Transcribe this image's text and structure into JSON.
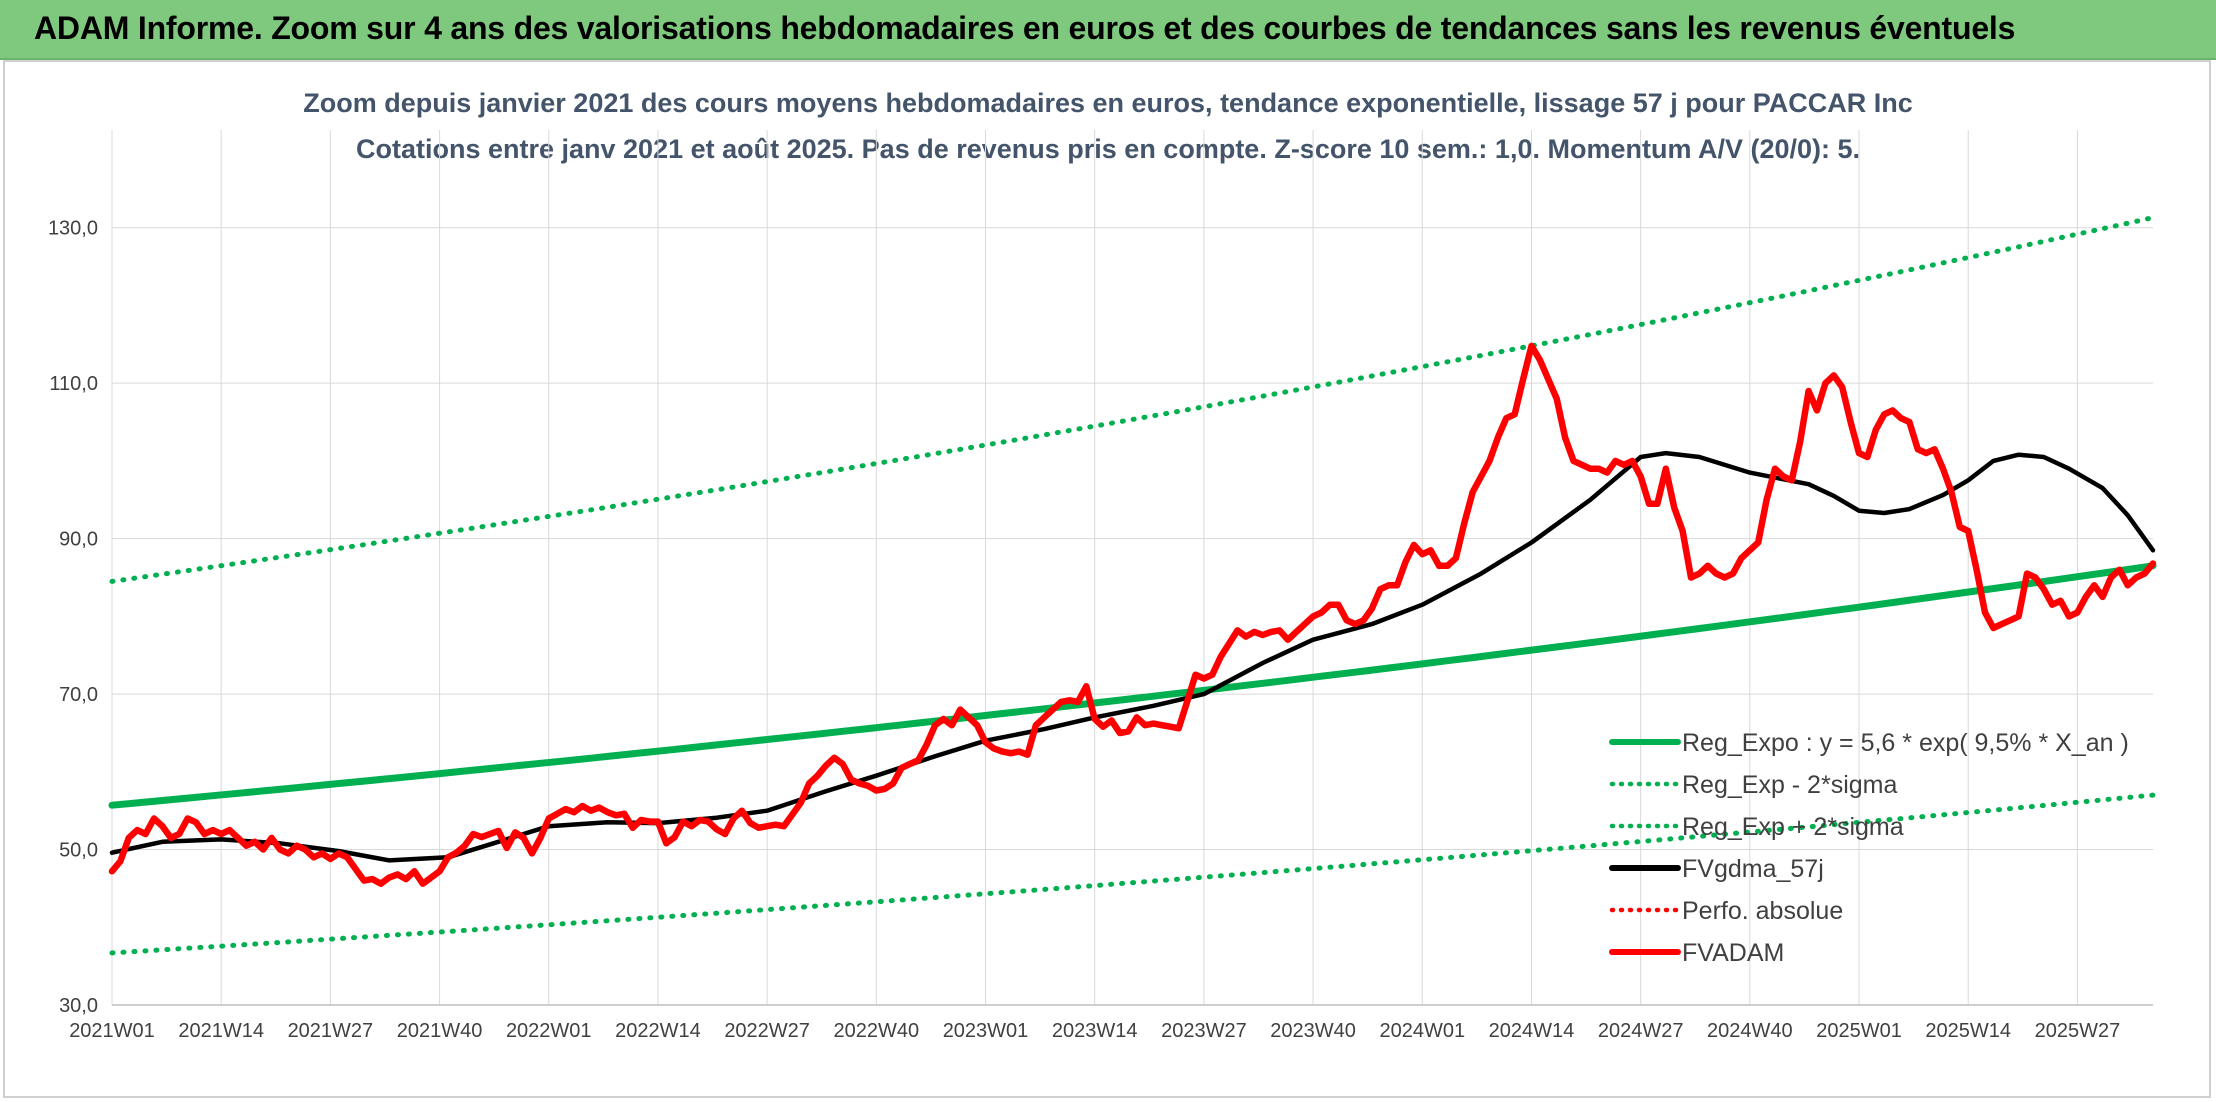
{
  "banner": {
    "title": "ADAM Informe. Zoom sur 4 ans des valorisations hebdomadaires en euros et des courbes de tendances sans les revenus éventuels"
  },
  "colors": {
    "banner_bg": "#7fc97f",
    "trend_green": "#00b050",
    "fvadam_red": "#ff0000",
    "fvgdma_black": "#000000",
    "grid": "#d9d9d9"
  },
  "chart_data": {
    "type": "line",
    "title": "Zoom depuis janvier 2021 des cours moyens hebdomadaires en euros, tendance exponentielle, lissage 57 j pour PACCAR Inc",
    "subtitle": "Cotations entre janv 2021 et août 2025. Pas de revenus pris en compte. Z-score 10 sem.: 1,0. Momentum A/V (20/0): 5.",
    "xlabel": "",
    "ylabel": "",
    "ylim": [
      30,
      140
    ],
    "yticks": [
      "30,0",
      "50,0",
      "70,0",
      "90,0",
      "110,0",
      "130,0"
    ],
    "yticks_values": [
      30,
      50,
      70,
      90,
      110,
      130
    ],
    "xticks": [
      "2021W01",
      "2021W14",
      "2021W27",
      "2021W40",
      "2022W01",
      "2022W14",
      "2022W27",
      "2022W40",
      "2023W01",
      "2023W14",
      "2023W27",
      "2023W40",
      "2024W01",
      "2024W14",
      "2024W27",
      "2024W40",
      "2025W01",
      "2025W14",
      "2025W27"
    ],
    "x_range_weeks": [
      0,
      243
    ],
    "grid": "vertical and horizontal",
    "legend_position": "bottom-right inside plot",
    "series": [
      {
        "name": "Reg_Expo : y = 5,6 * exp( 9,5% *  X_an )",
        "style": "solid",
        "color": "#00b050",
        "x": [
          0,
          243
        ],
        "start_value": 55.7,
        "end_value": 86.5
      },
      {
        "name": "Reg_Exp - 2*sigma",
        "style": "dotted",
        "color": "#00b050",
        "x": [
          0,
          243
        ],
        "start_value": 36.7,
        "end_value": 57.0
      },
      {
        "name": "Reg_Exp + 2*sigma",
        "style": "dotted",
        "color": "#00b050",
        "x": [
          0,
          243
        ],
        "start_value": 84.5,
        "end_value": 131.3
      },
      {
        "name": "FVgdma_57j",
        "style": "solid",
        "color": "#000000",
        "points": [
          [
            0,
            49.6
          ],
          [
            6,
            51.0
          ],
          [
            13,
            51.3
          ],
          [
            20,
            50.8
          ],
          [
            27,
            49.8
          ],
          [
            33,
            48.6
          ],
          [
            40,
            49.0
          ],
          [
            46,
            51.0
          ],
          [
            52,
            53.0
          ],
          [
            59,
            53.5
          ],
          [
            65,
            53.4
          ],
          [
            72,
            54.1
          ],
          [
            78,
            55.0
          ],
          [
            85,
            57.5
          ],
          [
            91,
            59.5
          ],
          [
            98,
            62.0
          ],
          [
            104,
            64.0
          ],
          [
            111,
            65.5
          ],
          [
            117,
            67.0
          ],
          [
            124,
            68.5
          ],
          [
            130,
            70.0
          ],
          [
            137,
            74.0
          ],
          [
            143,
            77.0
          ],
          [
            150,
            79.0
          ],
          [
            156,
            81.5
          ],
          [
            163,
            85.5
          ],
          [
            169,
            89.5
          ],
          [
            176,
            95.0
          ],
          [
            182,
            100.5
          ],
          [
            185,
            101.0
          ],
          [
            189,
            100.5
          ],
          [
            195,
            98.5
          ],
          [
            202,
            97.0
          ],
          [
            205,
            95.5
          ],
          [
            208,
            93.6
          ],
          [
            211,
            93.3
          ],
          [
            214,
            93.8
          ],
          [
            218,
            95.6
          ],
          [
            221,
            97.5
          ],
          [
            224,
            100.0
          ],
          [
            227,
            100.8
          ],
          [
            230,
            100.5
          ],
          [
            233,
            99.0
          ],
          [
            237,
            96.5
          ],
          [
            240,
            93.0
          ],
          [
            243,
            88.5
          ]
        ]
      },
      {
        "name": "Perfo. absolue",
        "style": "dotted",
        "color": "#ff0000",
        "points": []
      },
      {
        "name": "FVADAM",
        "style": "solid",
        "color": "#ff0000",
        "points": [
          [
            0,
            47.2
          ],
          [
            1,
            48.5
          ],
          [
            2,
            51.5
          ],
          [
            3,
            52.5
          ],
          [
            4,
            52.0
          ],
          [
            5,
            54.0
          ],
          [
            6,
            53.0
          ],
          [
            7,
            51.5
          ],
          [
            8,
            52.0
          ],
          [
            9,
            54.0
          ],
          [
            10,
            53.5
          ],
          [
            11,
            52.0
          ],
          [
            12,
            52.5
          ],
          [
            13,
            52.0
          ],
          [
            14,
            52.5
          ],
          [
            15,
            51.5
          ],
          [
            16,
            50.5
          ],
          [
            17,
            51.0
          ],
          [
            18,
            50.0
          ],
          [
            19,
            51.5
          ],
          [
            20,
            50.0
          ],
          [
            21,
            49.5
          ],
          [
            22,
            50.5
          ],
          [
            23,
            50.0
          ],
          [
            24,
            49.0
          ],
          [
            25,
            49.5
          ],
          [
            26,
            48.8
          ],
          [
            27,
            49.5
          ],
          [
            28,
            49.0
          ],
          [
            29,
            47.5
          ],
          [
            30,
            46.0
          ],
          [
            31,
            46.2
          ],
          [
            32,
            45.6
          ],
          [
            33,
            46.4
          ],
          [
            34,
            46.8
          ],
          [
            35,
            46.2
          ],
          [
            36,
            47.2
          ],
          [
            37,
            45.6
          ],
          [
            38,
            46.4
          ],
          [
            39,
            47.2
          ],
          [
            40,
            49.0
          ],
          [
            41,
            49.6
          ],
          [
            42,
            50.5
          ],
          [
            43,
            52.0
          ],
          [
            44,
            51.6
          ],
          [
            45,
            52.0
          ],
          [
            46,
            52.4
          ],
          [
            47,
            50.2
          ],
          [
            48,
            52.2
          ],
          [
            49,
            51.5
          ],
          [
            50,
            49.5
          ],
          [
            51,
            51.5
          ],
          [
            52,
            54.0
          ],
          [
            53,
            54.6
          ],
          [
            54,
            55.2
          ],
          [
            55,
            54.8
          ],
          [
            56,
            55.6
          ],
          [
            57,
            55.0
          ],
          [
            58,
            55.4
          ],
          [
            59,
            54.8
          ],
          [
            60,
            54.4
          ],
          [
            61,
            54.6
          ],
          [
            62,
            52.8
          ],
          [
            63,
            53.8
          ],
          [
            64,
            53.6
          ],
          [
            65,
            53.6
          ],
          [
            66,
            50.8
          ],
          [
            67,
            51.6
          ],
          [
            68,
            53.6
          ],
          [
            69,
            53.0
          ],
          [
            70,
            53.8
          ],
          [
            71,
            53.6
          ],
          [
            72,
            52.6
          ],
          [
            73,
            52.0
          ],
          [
            74,
            54.0
          ],
          [
            75,
            55.0
          ],
          [
            76,
            53.4
          ],
          [
            77,
            52.8
          ],
          [
            78,
            53.0
          ],
          [
            79,
            53.2
          ],
          [
            80,
            53.0
          ],
          [
            81,
            54.5
          ],
          [
            82,
            56.0
          ],
          [
            83,
            58.5
          ],
          [
            84,
            59.5
          ],
          [
            85,
            60.8
          ],
          [
            86,
            61.8
          ],
          [
            87,
            61.0
          ],
          [
            88,
            59.0
          ],
          [
            89,
            58.5
          ],
          [
            90,
            58.2
          ],
          [
            91,
            57.6
          ],
          [
            92,
            57.8
          ],
          [
            93,
            58.5
          ],
          [
            94,
            60.5
          ],
          [
            95,
            61.0
          ],
          [
            96,
            61.5
          ],
          [
            97,
            63.5
          ],
          [
            98,
            66.0
          ],
          [
            99,
            66.8
          ],
          [
            100,
            66.0
          ],
          [
            101,
            68.0
          ],
          [
            102,
            67.0
          ],
          [
            103,
            66.0
          ],
          [
            104,
            63.8
          ],
          [
            105,
            63.0
          ],
          [
            106,
            62.6
          ],
          [
            107,
            62.4
          ],
          [
            108,
            62.6
          ],
          [
            109,
            62.2
          ],
          [
            110,
            66.0
          ],
          [
            111,
            67.0
          ],
          [
            112,
            68.0
          ],
          [
            113,
            69.0
          ],
          [
            114,
            69.2
          ],
          [
            115,
            69.0
          ],
          [
            116,
            71.0
          ],
          [
            117,
            66.8
          ],
          [
            118,
            65.8
          ],
          [
            119,
            66.6
          ],
          [
            120,
            65.0
          ],
          [
            121,
            65.2
          ],
          [
            122,
            67.0
          ],
          [
            123,
            66.0
          ],
          [
            124,
            66.2
          ],
          [
            125,
            66.0
          ],
          [
            126,
            65.8
          ],
          [
            127,
            65.6
          ],
          [
            128,
            69.0
          ],
          [
            129,
            72.5
          ],
          [
            130,
            72.0
          ],
          [
            131,
            72.5
          ],
          [
            132,
            74.8
          ],
          [
            133,
            76.5
          ],
          [
            134,
            78.2
          ],
          [
            135,
            77.4
          ],
          [
            136,
            78.0
          ],
          [
            137,
            77.6
          ],
          [
            138,
            78.0
          ],
          [
            139,
            78.2
          ],
          [
            140,
            77.0
          ],
          [
            141,
            78.0
          ],
          [
            142,
            79.0
          ],
          [
            143,
            80.0
          ],
          [
            144,
            80.5
          ],
          [
            145,
            81.5
          ],
          [
            146,
            81.5
          ],
          [
            147,
            79.5
          ],
          [
            148,
            79.0
          ],
          [
            149,
            79.5
          ],
          [
            150,
            81.0
          ],
          [
            151,
            83.5
          ],
          [
            152,
            84.0
          ],
          [
            153,
            84.0
          ],
          [
            154,
            87.0
          ],
          [
            155,
            89.2
          ],
          [
            156,
            88.0
          ],
          [
            157,
            88.5
          ],
          [
            158,
            86.5
          ],
          [
            159,
            86.5
          ],
          [
            160,
            87.5
          ],
          [
            161,
            92.0
          ],
          [
            162,
            96.0
          ],
          [
            163,
            98.0
          ],
          [
            164,
            100.0
          ],
          [
            165,
            103.0
          ],
          [
            166,
            105.5
          ],
          [
            167,
            106.0
          ],
          [
            168,
            110.5
          ],
          [
            169,
            114.8
          ],
          [
            170,
            113.0
          ],
          [
            171,
            110.5
          ],
          [
            172,
            108.0
          ],
          [
            173,
            103.0
          ],
          [
            174,
            100.0
          ],
          [
            175,
            99.5
          ],
          [
            176,
            99.0
          ],
          [
            177,
            99.0
          ],
          [
            178,
            98.5
          ],
          [
            179,
            100.0
          ],
          [
            180,
            99.5
          ],
          [
            181,
            100.0
          ],
          [
            182,
            98.0
          ],
          [
            183,
            94.5
          ],
          [
            184,
            94.5
          ],
          [
            185,
            99.0
          ],
          [
            186,
            94.0
          ],
          [
            187,
            91.0
          ],
          [
            188,
            85.0
          ],
          [
            189,
            85.5
          ],
          [
            190,
            86.5
          ],
          [
            191,
            85.5
          ],
          [
            192,
            85.0
          ],
          [
            193,
            85.5
          ],
          [
            194,
            87.5
          ],
          [
            195,
            88.5
          ],
          [
            196,
            89.5
          ],
          [
            197,
            95.0
          ],
          [
            198,
            99.0
          ],
          [
            199,
            98.0
          ],
          [
            200,
            97.5
          ],
          [
            201,
            102.5
          ],
          [
            202,
            109.0
          ],
          [
            203,
            106.5
          ],
          [
            204,
            110.0
          ],
          [
            205,
            111.0
          ],
          [
            206,
            109.5
          ],
          [
            207,
            105.0
          ],
          [
            208,
            101.0
          ],
          [
            209,
            100.5
          ],
          [
            210,
            104.0
          ],
          [
            211,
            106.0
          ],
          [
            212,
            106.5
          ],
          [
            213,
            105.5
          ],
          [
            214,
            105.0
          ],
          [
            215,
            101.5
          ],
          [
            216,
            101.0
          ],
          [
            217,
            101.5
          ],
          [
            218,
            99.0
          ],
          [
            219,
            96.0
          ],
          [
            220,
            91.5
          ],
          [
            221,
            91.0
          ],
          [
            222,
            86.0
          ],
          [
            223,
            80.5
          ],
          [
            224,
            78.5
          ],
          [
            225,
            79.0
          ],
          [
            226,
            79.5
          ],
          [
            227,
            80.0
          ],
          [
            228,
            85.5
          ],
          [
            229,
            85.0
          ],
          [
            230,
            83.5
          ],
          [
            231,
            81.5
          ],
          [
            232,
            82.0
          ],
          [
            233,
            80.0
          ],
          [
            234,
            80.5
          ],
          [
            235,
            82.5
          ],
          [
            236,
            84.0
          ],
          [
            237,
            82.5
          ],
          [
            238,
            85.0
          ],
          [
            239,
            86.0
          ],
          [
            240,
            84.0
          ],
          [
            241,
            85.0
          ],
          [
            242,
            85.5
          ],
          [
            243,
            86.8
          ]
        ]
      }
    ]
  }
}
